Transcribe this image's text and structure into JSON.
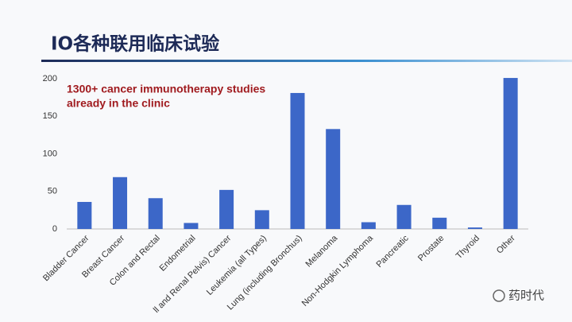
{
  "chart_data": {
    "type": "bar",
    "title": "IO各种联用临床试验",
    "annotation": [
      "1300+ cancer immunotherapy studies",
      "already in the clinic"
    ],
    "watermark": "药时代",
    "categories": [
      "Bladder Cancer",
      "Breast Cancer",
      "Colon and Rectal",
      "Endometrial",
      "ll and Renal Pelvis) Cancer",
      "Leukemia (all Types)",
      "Lung (including Bronchus)",
      "Melanoma",
      "Non-Hodgkin Lymphoma",
      "Pancreatic",
      "Prostate",
      "Thyroid",
      "Other"
    ],
    "values": [
      36,
      69,
      41,
      8,
      52,
      25,
      181,
      133,
      9,
      32,
      15,
      2,
      201
    ],
    "color": "#3c67c8",
    "ylim": [
      0,
      200
    ],
    "yticks": [
      0,
      50,
      100,
      150,
      200
    ],
    "grid": false
  }
}
